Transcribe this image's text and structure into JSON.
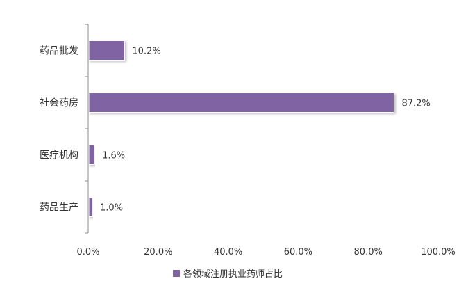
{
  "chart_data": {
    "type": "bar",
    "orientation": "horizontal",
    "categories": [
      "药品批发",
      "社会药房",
      "医疗机构",
      "药品生产"
    ],
    "series": [
      {
        "name": "各领域注册执业药师占比",
        "values": [
          10.2,
          87.2,
          1.6,
          1.0
        ],
        "value_labels": [
          "10.2%",
          "87.2%",
          "1.6%",
          "1.0%"
        ],
        "color": "#8064a2"
      }
    ],
    "xlim": [
      0,
      100
    ],
    "x_ticks": [
      "0.0%",
      "20.0%",
      "40.0%",
      "60.0%",
      "80.0%",
      "100.0%"
    ],
    "grid": false,
    "legend_position": "bottom"
  }
}
